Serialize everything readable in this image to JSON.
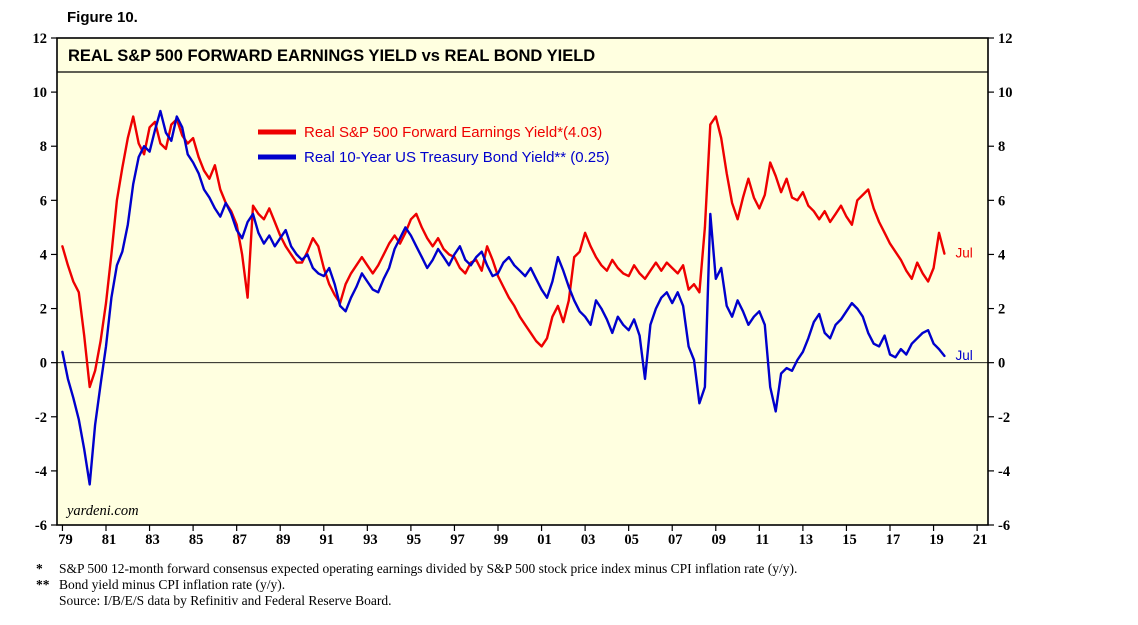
{
  "figure_label": "Figure 10.",
  "chart": {
    "title": "REAL S&P 500 FORWARD EARNINGS YIELD vs REAL BOND YIELD",
    "watermark": "yardeni.com",
    "background_color": "#FFFFE0",
    "border_color": "#000000",
    "zero_line_color": "#000000"
  },
  "chart_data": {
    "type": "line",
    "title": "REAL S&P 500 FORWARD EARNINGS YIELD vs REAL BOND YIELD",
    "grid": false,
    "legend_position": "inside-top-left",
    "x_range": [
      1978.75,
      2021.5
    ],
    "y_range": [
      -6,
      12
    ],
    "y_ticks": [
      12,
      10,
      8,
      6,
      4,
      2,
      0,
      -2,
      -4,
      -6
    ],
    "x_tick_years": [
      1979,
      1981,
      1983,
      1985,
      1987,
      1989,
      1991,
      1993,
      1995,
      1997,
      1999,
      2001,
      2003,
      2005,
      2007,
      2009,
      2011,
      2013,
      2015,
      2017,
      2019,
      2021
    ],
    "x_tick_labels": [
      "79",
      "81",
      "83",
      "85",
      "87",
      "89",
      "91",
      "93",
      "95",
      "97",
      "99",
      "01",
      "03",
      "05",
      "07",
      "09",
      "11",
      "13",
      "15",
      "17",
      "19",
      "21"
    ],
    "x_start": 1979.0,
    "x_step": 0.25,
    "series": [
      {
        "name": "Real S&P 500 Forward Earnings Yield*(4.03)",
        "color": "#EE0000",
        "end_label": "Jul",
        "last_value": 4.03,
        "y": [
          4.3,
          3.6,
          3.0,
          2.6,
          1.0,
          -0.9,
          -0.3,
          0.8,
          2.2,
          4.0,
          6.0,
          7.2,
          8.3,
          9.1,
          8.1,
          7.7,
          8.7,
          8.9,
          8.1,
          7.9,
          8.8,
          9.0,
          8.4,
          8.1,
          8.3,
          7.6,
          7.1,
          6.8,
          7.3,
          6.4,
          5.9,
          5.6,
          5.1,
          4.0,
          2.4,
          5.8,
          5.5,
          5.3,
          5.7,
          5.2,
          4.7,
          4.3,
          4.0,
          3.7,
          3.7,
          4.1,
          4.6,
          4.3,
          3.5,
          2.9,
          2.5,
          2.2,
          2.9,
          3.3,
          3.6,
          3.9,
          3.6,
          3.3,
          3.6,
          4.0,
          4.4,
          4.7,
          4.4,
          4.8,
          5.3,
          5.5,
          5.0,
          4.6,
          4.3,
          4.6,
          4.2,
          4.0,
          3.9,
          3.5,
          3.3,
          3.7,
          3.8,
          3.4,
          4.3,
          3.8,
          3.2,
          2.8,
          2.4,
          2.1,
          1.7,
          1.4,
          1.1,
          0.8,
          0.6,
          0.9,
          1.7,
          2.1,
          1.5,
          2.3,
          3.9,
          4.1,
          4.8,
          4.3,
          3.9,
          3.6,
          3.4,
          3.8,
          3.5,
          3.3,
          3.2,
          3.6,
          3.3,
          3.1,
          3.4,
          3.7,
          3.4,
          3.7,
          3.5,
          3.3,
          3.6,
          2.7,
          2.9,
          2.6,
          5.0,
          8.8,
          9.1,
          8.3,
          7.0,
          5.9,
          5.3,
          6.1,
          6.8,
          6.1,
          5.7,
          6.2,
          7.4,
          6.9,
          6.3,
          6.8,
          6.1,
          6.0,
          6.3,
          5.8,
          5.6,
          5.3,
          5.6,
          5.2,
          5.5,
          5.8,
          5.4,
          5.1,
          6.0,
          6.2,
          6.4,
          5.7,
          5.2,
          4.8,
          4.4,
          4.1,
          3.8,
          3.4,
          3.1,
          3.7,
          3.3,
          3.0,
          3.5,
          4.8,
          4.03
        ]
      },
      {
        "name": "Real 10-Year US Treasury Bond Yield** (0.25)",
        "color": "#0000CC",
        "end_label": "Jul",
        "last_value": 0.25,
        "y": [
          0.4,
          -0.6,
          -1.3,
          -2.1,
          -3.2,
          -4.5,
          -2.3,
          -0.8,
          0.6,
          2.4,
          3.6,
          4.1,
          5.1,
          6.6,
          7.6,
          8.0,
          7.8,
          8.6,
          9.3,
          8.5,
          8.2,
          9.1,
          8.7,
          7.7,
          7.4,
          7.0,
          6.4,
          6.1,
          5.7,
          5.4,
          5.9,
          5.5,
          4.9,
          4.6,
          5.2,
          5.5,
          4.8,
          4.4,
          4.7,
          4.3,
          4.6,
          4.9,
          4.3,
          4.0,
          3.8,
          4.0,
          3.5,
          3.3,
          3.2,
          3.5,
          2.9,
          2.1,
          1.9,
          2.4,
          2.8,
          3.3,
          3.0,
          2.7,
          2.6,
          3.1,
          3.5,
          4.2,
          4.6,
          5.0,
          4.7,
          4.3,
          3.9,
          3.5,
          3.8,
          4.2,
          3.9,
          3.6,
          4.0,
          4.3,
          3.8,
          3.6,
          3.9,
          4.1,
          3.6,
          3.2,
          3.3,
          3.7,
          3.9,
          3.6,
          3.4,
          3.2,
          3.5,
          3.1,
          2.7,
          2.4,
          3.0,
          3.9,
          3.4,
          2.8,
          2.3,
          1.9,
          1.7,
          1.4,
          2.3,
          2.0,
          1.6,
          1.1,
          1.7,
          1.4,
          1.2,
          1.6,
          1.0,
          -0.6,
          1.4,
          2.0,
          2.4,
          2.6,
          2.2,
          2.6,
          2.1,
          0.6,
          0.1,
          -1.5,
          -0.9,
          5.5,
          3.1,
          3.5,
          2.1,
          1.7,
          2.3,
          1.9,
          1.4,
          1.7,
          1.9,
          1.4,
          -0.9,
          -1.8,
          -0.4,
          -0.2,
          -0.3,
          0.1,
          0.4,
          0.9,
          1.5,
          1.8,
          1.1,
          0.9,
          1.4,
          1.6,
          1.9,
          2.2,
          2.0,
          1.7,
          1.1,
          0.7,
          0.6,
          1.0,
          0.3,
          0.2,
          0.5,
          0.3,
          0.7,
          0.9,
          1.1,
          1.2,
          0.7,
          0.5,
          0.25
        ]
      }
    ]
  },
  "footnotes": [
    {
      "marker": "*",
      "text": "S&P 500 12-month forward consensus expected operating earnings divided by S&P 500 stock price index minus CPI inflation rate (y/y)."
    },
    {
      "marker": "**",
      "text": "Bond yield minus CPI inflation rate (y/y)."
    },
    {
      "marker": "",
      "text": "Source: I/B/E/S data by Refinitiv and Federal Reserve Board."
    }
  ]
}
